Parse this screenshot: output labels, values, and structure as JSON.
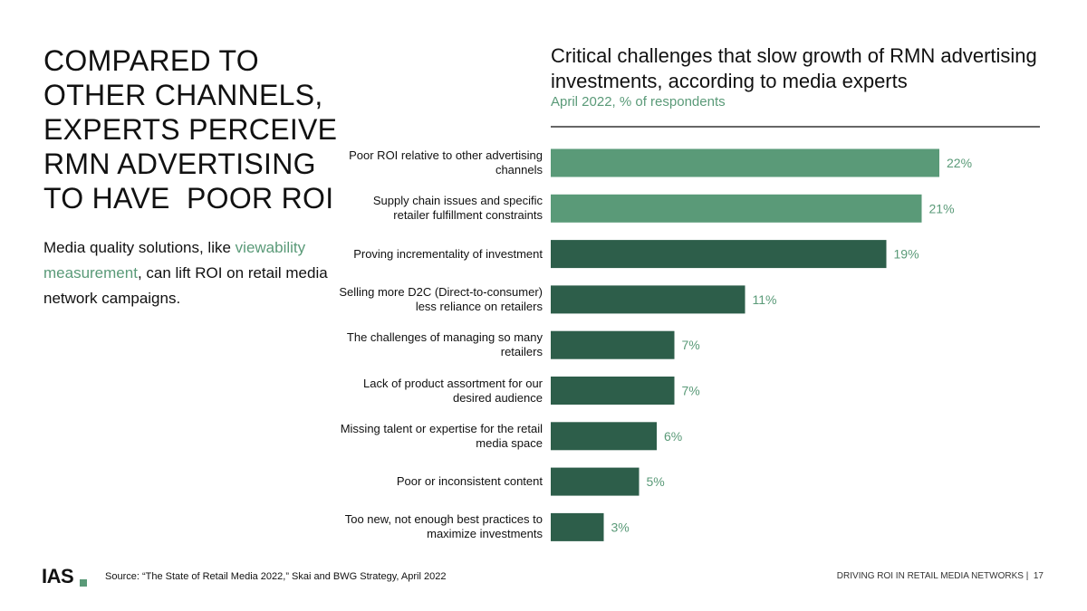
{
  "headline": [
    "COMPARED TO",
    "OTHER CHANNELS,",
    "EXPERTS PERCEIVE",
    "RMN ADVERTISING",
    "TO HAVE  POOR ROI"
  ],
  "body": [
    "Media quality solutions, like ",
    "viewability measurement",
    ", can lift ROI on retail media network campaigns."
  ],
  "chart_data": {
    "type": "bar",
    "orientation": "horizontal",
    "title": "Critical challenges that slow growth of RMN advertising investments, according to media experts",
    "subtitle": "April 2022, % of respondents",
    "categories": [
      "Poor ROI relative to other advertising channels",
      "Supply chain issues and specific retailer fulfillment constraints",
      "Proving incrementality of investment",
      "Selling more D2C (Direct-to-consumer) less reliance on retailers",
      "The challenges of managing so many retailers",
      "Lack of product assortment for our desired audience",
      "Missing talent or expertise for the retail media space",
      "Poor or inconsistent content",
      "Too new, not enough best practices to maximize investments"
    ],
    "values": [
      22,
      21,
      19,
      11,
      7,
      7,
      6,
      5,
      3
    ],
    "value_labels": [
      "22%",
      "21%",
      "19%",
      "11%",
      "7%",
      "7%",
      "6%",
      "5%",
      "3%"
    ],
    "colors": [
      "#5a9a78",
      "#5a9a78",
      "#2d5e4a",
      "#2d5e4a",
      "#2d5e4a",
      "#2d5e4a",
      "#2d5e4a",
      "#2d5e4a",
      "#2d5e4a"
    ],
    "label_color": "#5a9a78"
  },
  "footer": {
    "logo": "IAS",
    "source": "Source: “The State of Retail Media 2022,” Skai and BWG Strategy, April 2022",
    "title": "DRIVING ROI IN RETAIL MEDIA NETWORKS  |",
    "page": "17"
  }
}
